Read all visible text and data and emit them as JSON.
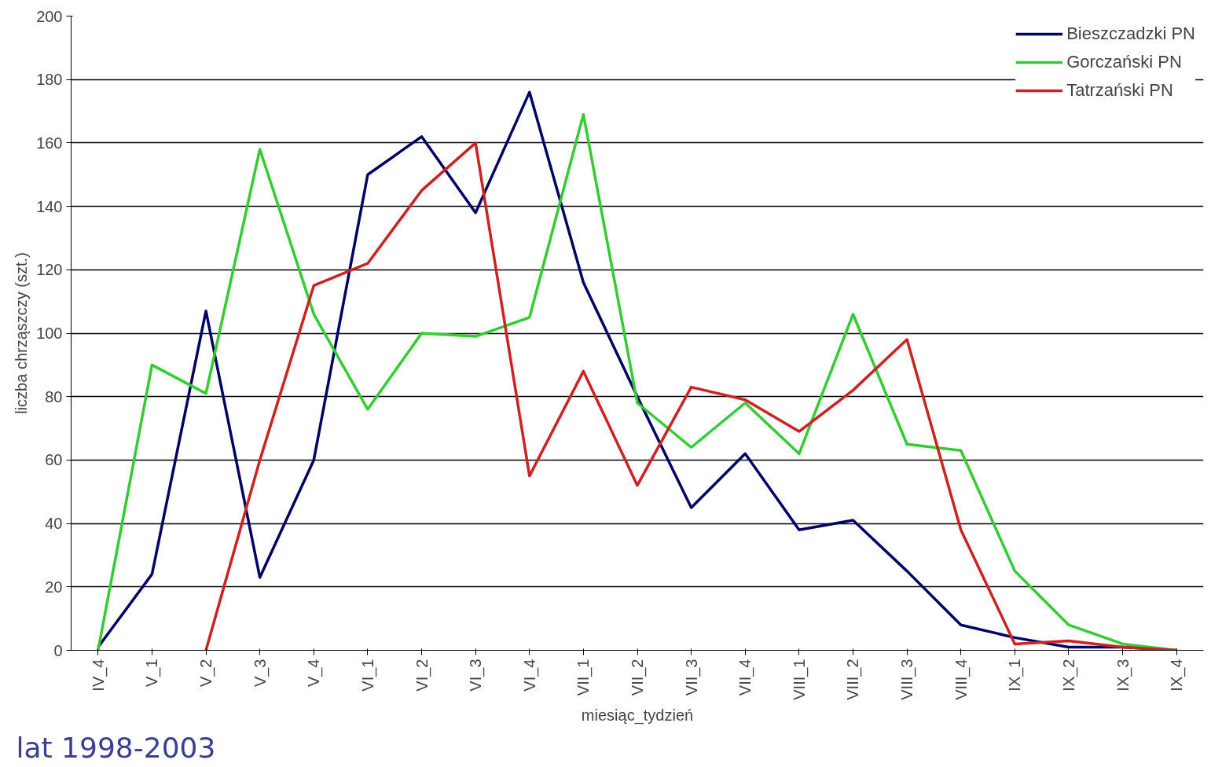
{
  "chart_data": {
    "type": "line",
    "xlabel": "miesiąc_tydzień",
    "ylabel": "liczba chrząszczy (szt.)",
    "categories": [
      "IV_4",
      "V_1",
      "V_2",
      "V_3",
      "V_4",
      "VI_1",
      "VI_2",
      "VI_3",
      "VI_4",
      "VII_1",
      "VII_2",
      "VII_3",
      "VII_4",
      "VIII_1",
      "VIII_2",
      "VIII_3",
      "VIII_4",
      "IX_1",
      "IX_2",
      "IX_3",
      "IX_4"
    ],
    "series": [
      {
        "name": "Bieszczadzki PN",
        "color": "#000066",
        "values": [
          1,
          24,
          107,
          23,
          60,
          150,
          162,
          138,
          176,
          116,
          80,
          45,
          62,
          38,
          41,
          25,
          8,
          4,
          1,
          1,
          0
        ]
      },
      {
        "name": "Gorczański PN",
        "color": "#33cc33",
        "values": [
          0,
          90,
          81,
          158,
          106,
          76,
          100,
          99,
          105,
          169,
          78,
          64,
          78,
          62,
          106,
          65,
          63,
          25,
          8,
          2,
          0
        ]
      },
      {
        "name": "Tatrzański PN",
        "color": "#cc2222",
        "values": [
          null,
          null,
          0,
          60,
          115,
          122,
          145,
          160,
          55,
          88,
          52,
          83,
          79,
          69,
          82,
          98,
          38,
          2,
          3,
          1,
          0
        ]
      }
    ],
    "ylim": [
      0,
      200
    ],
    "yticks": [
      0,
      20,
      40,
      60,
      80,
      100,
      120,
      140,
      160,
      180,
      200
    ],
    "grid": "y",
    "legend": "top right",
    "marker": "none",
    "line_style": "solid",
    "annotations": [
      "lat 1998-2003"
    ]
  }
}
